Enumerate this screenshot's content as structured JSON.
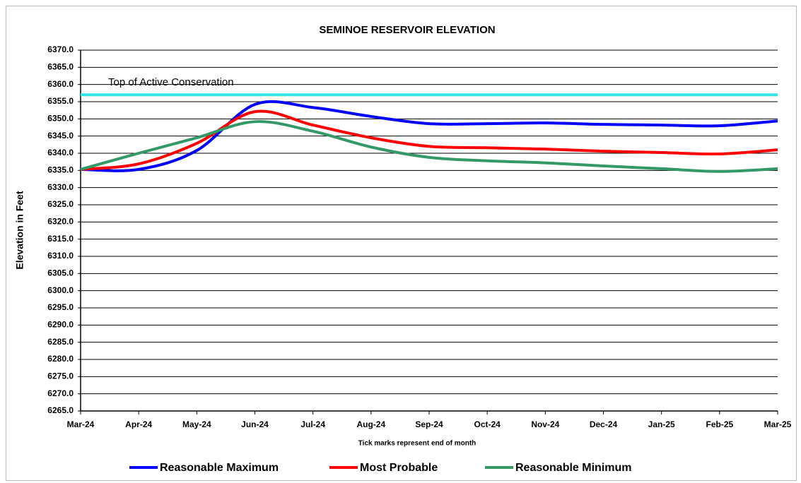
{
  "chart_data": {
    "type": "line",
    "title": "SEMINOE RESERVOIR ELEVATION",
    "y_label": "Elevation in Feet",
    "x_label": "Tick marks represent end of month",
    "categories": [
      "Mar-24",
      "Apr-24",
      "May-24",
      "Jun-24",
      "Jul-24",
      "Aug-24",
      "Sep-24",
      "Oct-24",
      "Nov-24",
      "Dec-24",
      "Jan-25",
      "Feb-25",
      "Mar-25"
    ],
    "series": [
      {
        "name": "Reasonable Maximum",
        "color": "#0000ff",
        "values": [
          6335.3,
          6335.3,
          6340.8,
          6354.2,
          6353.3,
          6350.7,
          6348.6,
          6348.6,
          6348.8,
          6348.4,
          6348.2,
          6348.0,
          6349.4
        ]
      },
      {
        "name": "Most Probable",
        "color": "#ff0000",
        "values": [
          6335.3,
          6336.9,
          6342.9,
          6352.1,
          6348.2,
          6344.5,
          6342.0,
          6341.6,
          6341.2,
          6340.6,
          6340.2,
          6339.8,
          6341.0
        ]
      },
      {
        "name": "Reasonable Minimum",
        "color": "#339966",
        "values": [
          6335.3,
          6340.0,
          6344.5,
          6349.2,
          6346.4,
          6341.8,
          6338.8,
          6337.8,
          6337.2,
          6336.3,
          6335.5,
          6334.7,
          6335.5
        ]
      }
    ],
    "reference_lines": [
      {
        "label": "Top of Active Conservation",
        "value": 6357.0,
        "color": "#33e6e6"
      }
    ],
    "ylim": [
      6265,
      6370
    ],
    "yticks": [
      {
        "value": 6265,
        "label": "6265.0"
      },
      {
        "value": 6270,
        "label": "6270.0"
      },
      {
        "value": 6275,
        "label": "6275.0"
      },
      {
        "value": 6280,
        "label": "6280.0"
      },
      {
        "value": 6285,
        "label": "6285.0"
      },
      {
        "value": 6290,
        "label": "6290.0"
      },
      {
        "value": 6295,
        "label": "6295.0"
      },
      {
        "value": 6300,
        "label": "6300.0"
      },
      {
        "value": 6305,
        "label": "6305.0"
      },
      {
        "value": 6310,
        "label": "6310.0"
      },
      {
        "value": 6315,
        "label": "6315.0"
      },
      {
        "value": 6320,
        "label": "6320.0"
      },
      {
        "value": 6325,
        "label": "6325.0"
      },
      {
        "value": 6330,
        "label": "6330.0"
      },
      {
        "value": 6335,
        "label": "6335.0"
      },
      {
        "value": 6340,
        "label": "6340.0"
      },
      {
        "value": 6345,
        "label": "6345.0"
      },
      {
        "value": 6350,
        "label": "6350.0"
      },
      {
        "value": 6355,
        "label": "6355.0"
      },
      {
        "value": 6360,
        "label": "6360.0"
      },
      {
        "value": 6365,
        "label": "6365.0"
      },
      {
        "value": 6370,
        "label": "6370.0"
      }
    ],
    "grid": true,
    "legend": "bottom"
  }
}
